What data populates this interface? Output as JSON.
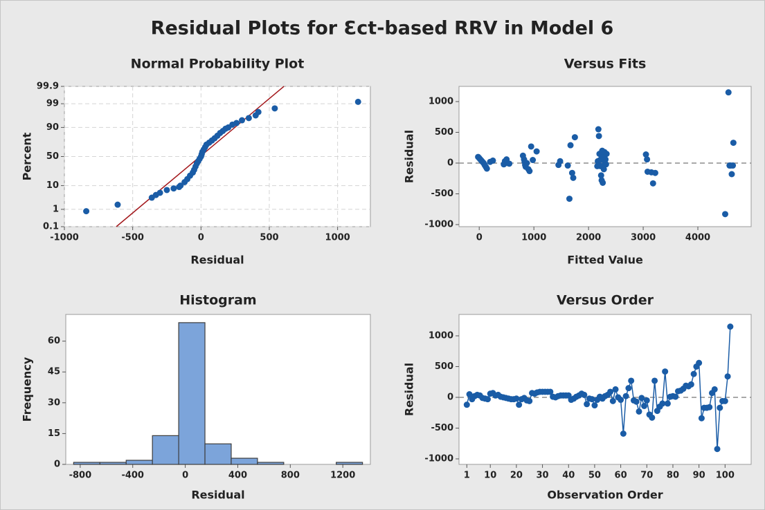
{
  "title": "Residual Plots for Ɛct-based RRV in Model 6",
  "chart_data": [
    {
      "type": "probability",
      "title": "Normal Probability Plot",
      "x_label": "Residual",
      "y_label": "Percent",
      "xlim": [
        -1000,
        1240
      ],
      "ylim": [
        0.1,
        99.9
      ],
      "yscale": "probability",
      "grid": true,
      "xticks": [
        -1000,
        -500,
        0,
        500,
        1000
      ],
      "yticks": [
        0.1,
        1,
        10,
        50,
        90,
        99,
        99.9
      ],
      "color": "#1a5ca6",
      "x": [
        -840,
        -610,
        -360,
        -330,
        -300,
        -250,
        -200,
        -160,
        -150,
        -120,
        -100,
        -80,
        -60,
        -50,
        -40,
        -30,
        -20,
        -10,
        0,
        5,
        10,
        20,
        30,
        40,
        60,
        80,
        100,
        120,
        140,
        160,
        180,
        200,
        230,
        260,
        300,
        350,
        400,
        420,
        540,
        1150
      ],
      "values": [
        0.8,
        1.7,
        3.5,
        4.5,
        5.5,
        7,
        8,
        9,
        10,
        13,
        16,
        20,
        24,
        28,
        33,
        38,
        42,
        46,
        50,
        54,
        58,
        62,
        66,
        70,
        73,
        76,
        79,
        82,
        85,
        87,
        89,
        90,
        92,
        93,
        94.5,
        95.5,
        96.5,
        97.5,
        98.3,
        99.2
      ],
      "fit_line": {
        "color": "#a3171b",
        "x": [
          -620,
          607
        ],
        "values": [
          0.1,
          99.9
        ]
      }
    },
    {
      "type": "scatter",
      "title": "Versus Fits",
      "x_label": "Fitted Value",
      "y_label": "Residual",
      "xlim": [
        -370,
        4975
      ],
      "ylim": [
        -1034,
        1247
      ],
      "xticks": [
        0,
        1000,
        2000,
        3000,
        4000
      ],
      "yticks": [
        -1000,
        -500,
        0,
        500,
        1000
      ],
      "reference_line": 0,
      "color": "#1a5ca6",
      "x": [
        -20,
        0,
        20,
        40,
        60,
        80,
        100,
        120,
        140,
        200,
        250,
        450,
        470,
        500,
        520,
        550,
        800,
        820,
        830,
        840,
        850,
        870,
        900,
        920,
        950,
        980,
        1050,
        1450,
        1480,
        1620,
        1650,
        1670,
        1700,
        1720,
        1750,
        2160,
        2170,
        2180,
        2190,
        2200,
        2210,
        2220,
        2230,
        2240,
        2240,
        2250,
        2260,
        2270,
        2280,
        2290,
        2300,
        2310,
        2320,
        2330,
        3050,
        3070,
        3080,
        3150,
        3180,
        3220,
        4500,
        4560,
        4580,
        4600,
        4620,
        4640,
        4650
      ],
      "values": [
        100,
        80,
        60,
        40,
        20,
        0,
        -30,
        -60,
        -90,
        20,
        40,
        -20,
        30,
        60,
        0,
        -10,
        120,
        60,
        20,
        -30,
        -60,
        0,
        -100,
        -130,
        270,
        50,
        190,
        -30,
        30,
        -40,
        -580,
        290,
        -160,
        -240,
        420,
        -50,
        30,
        550,
        440,
        150,
        50,
        -50,
        -200,
        -280,
        120,
        200,
        -320,
        100,
        -100,
        180,
        0,
        60,
        -20,
        150,
        140,
        60,
        -140,
        -150,
        -330,
        -160,
        -830,
        1150,
        -40,
        -40,
        -180,
        -40,
        330
      ]
    },
    {
      "type": "histogram",
      "title": "Histogram",
      "x_label": "Residual",
      "y_label": "Frequency",
      "xlim": [
        -910,
        1410
      ],
      "ylim": [
        0,
        73
      ],
      "xticks": [
        -800,
        -400,
        0,
        400,
        800,
        1200
      ],
      "yticks": [
        0,
        15,
        30,
        45,
        60
      ],
      "color": "#7ca4da",
      "edge_color": "#3c3c3c",
      "bins": [
        -850,
        -650,
        -450,
        -250,
        -50,
        150,
        350,
        550,
        750,
        950,
        1150,
        1350
      ],
      "values": [
        1,
        1,
        2,
        14,
        69,
        10,
        3,
        1,
        0,
        0,
        1
      ]
    },
    {
      "type": "line",
      "title": "Versus Order",
      "x_label": "Observation Order",
      "y_label": "Residual",
      "xlim": [
        -2,
        110
      ],
      "ylim": [
        -1090,
        1348
      ],
      "xticks": [
        1,
        10,
        20,
        30,
        40,
        50,
        60,
        70,
        80,
        90,
        100
      ],
      "yticks": [
        -1000,
        -500,
        0,
        500,
        1000
      ],
      "reference_line": 0,
      "markers": true,
      "color": "#1a5ca6",
      "x": [
        1,
        2,
        3,
        4,
        5,
        6,
        7,
        8,
        9,
        10,
        11,
        12,
        13,
        14,
        15,
        16,
        17,
        18,
        19,
        20,
        21,
        22,
        23,
        24,
        25,
        26,
        27,
        28,
        29,
        30,
        31,
        32,
        33,
        34,
        35,
        36,
        37,
        38,
        39,
        40,
        41,
        42,
        43,
        44,
        45,
        46,
        47,
        48,
        49,
        50,
        51,
        52,
        53,
        54,
        55,
        56,
        57,
        58,
        59,
        60,
        61,
        62,
        63,
        64,
        65,
        66,
        67,
        68,
        69,
        70,
        71,
        72,
        73,
        74,
        75,
        76,
        77,
        78,
        79,
        80,
        81,
        82,
        83,
        84,
        85,
        86,
        87,
        88,
        89,
        90,
        91,
        92,
        93,
        94,
        95,
        96,
        97,
        98,
        99,
        100,
        101,
        102
      ],
      "values": [
        -120,
        50,
        -30,
        20,
        40,
        30,
        -10,
        -20,
        -30,
        60,
        70,
        30,
        40,
        10,
        0,
        -10,
        -20,
        -30,
        -30,
        -20,
        -120,
        -30,
        -10,
        -50,
        -60,
        70,
        60,
        80,
        90,
        90,
        90,
        90,
        90,
        10,
        0,
        20,
        30,
        30,
        30,
        30,
        -40,
        -20,
        10,
        30,
        60,
        40,
        -110,
        -20,
        -30,
        -130,
        -40,
        10,
        -20,
        20,
        40,
        90,
        -60,
        130,
        0,
        -40,
        -590,
        20,
        150,
        270,
        -50,
        -70,
        -230,
        -10,
        -140,
        -50,
        -280,
        -330,
        270,
        -220,
        -150,
        -100,
        420,
        -100,
        10,
        20,
        10,
        100,
        110,
        140,
        190,
        180,
        210,
        380,
        500,
        560,
        -340,
        -170,
        -170,
        -160,
        70,
        130,
        -840,
        -170,
        -60,
        -60,
        340,
        1150
      ]
    }
  ]
}
